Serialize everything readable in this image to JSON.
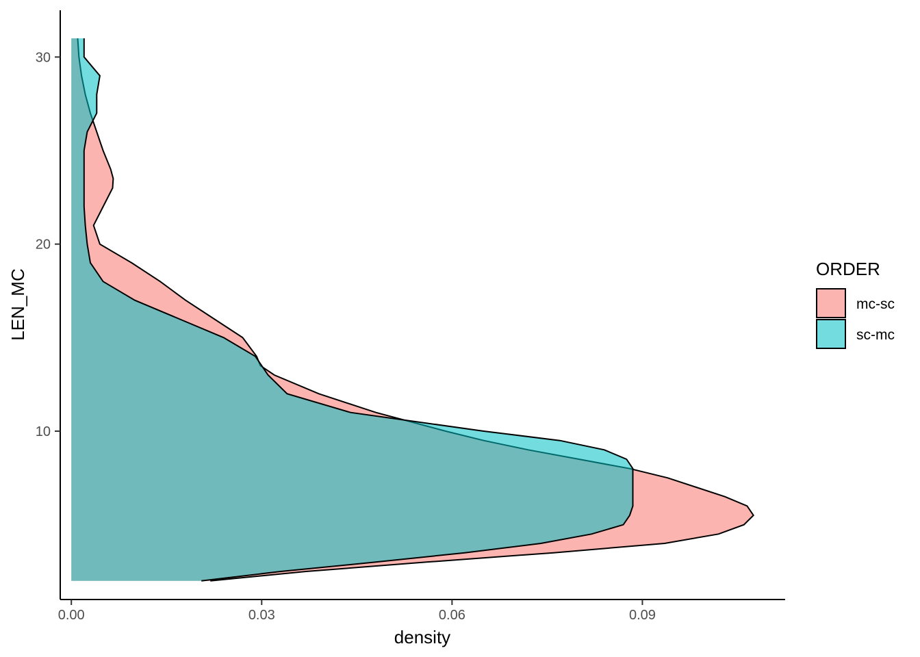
{
  "chart_data": {
    "type": "area",
    "orientation": "horizontal-density",
    "xlabel": "density",
    "ylabel": "LEN_MC",
    "xlim": [
      -0.00175,
      0.1125
    ],
    "ylim": [
      1.0,
      32.5
    ],
    "x_ticks": [
      0.0,
      0.03,
      0.06,
      0.09
    ],
    "x_tick_labels": [
      "0.00",
      "0.03",
      "0.06",
      "0.09"
    ],
    "y_ticks": [
      10,
      20,
      30
    ],
    "y_tick_labels": [
      "10",
      "20",
      "30"
    ],
    "grid": false,
    "legend": {
      "title": "ORDER",
      "position": "right",
      "entries": [
        {
          "label": "mc-sc",
          "color": "#F8766D"
        },
        {
          "label": "sc-mc",
          "color": "#00BFC4"
        }
      ]
    },
    "fill_alpha": 0.55,
    "series": [
      {
        "name": "mc-sc",
        "color": "#F8766D",
        "y": [
          2.0,
          2.5,
          3.0,
          3.5,
          4.0,
          4.5,
          5.0,
          5.5,
          6.0,
          6.5,
          7.0,
          7.5,
          8.0,
          8.5,
          9.0,
          9.5,
          10.0,
          11.0,
          12.0,
          13.0,
          13.5,
          14.0,
          15.0,
          16.0,
          17.0,
          18.0,
          19.0,
          20.0,
          21.0,
          22.0,
          23.0,
          23.5,
          24.0,
          25.0,
          26.0,
          27.0,
          28.0,
          29.0,
          30.0,
          31.0
        ],
        "density": [
          0.0219,
          0.037,
          0.056,
          0.076,
          0.0935,
          0.102,
          0.106,
          0.1075,
          0.1065,
          0.103,
          0.0985,
          0.094,
          0.088,
          0.08,
          0.072,
          0.065,
          0.059,
          0.048,
          0.039,
          0.032,
          0.0298,
          0.0292,
          0.027,
          0.0225,
          0.018,
          0.014,
          0.0095,
          0.0045,
          0.0035,
          0.005,
          0.0065,
          0.0066,
          0.0062,
          0.005,
          0.004,
          0.003,
          0.0022,
          0.0016,
          0.0012,
          0.001
        ]
      },
      {
        "name": "sc-mc",
        "color": "#00BFC4",
        "y": [
          2.0,
          2.5,
          3.0,
          3.5,
          4.0,
          4.5,
          5.0,
          5.5,
          6.0,
          6.5,
          7.0,
          7.5,
          8.0,
          8.5,
          9.0,
          9.5,
          10.0,
          11.0,
          12.0,
          13.0,
          13.5,
          14.0,
          15.0,
          16.0,
          17.0,
          18.0,
          19.0,
          20.0,
          21.0,
          22.0,
          23.0,
          24.0,
          25.0,
          26.0,
          27.0,
          28.0,
          29.0,
          30.0,
          31.0
        ],
        "density": [
          0.0205,
          0.033,
          0.048,
          0.062,
          0.074,
          0.082,
          0.087,
          0.088,
          0.0885,
          0.0885,
          0.0885,
          0.0885,
          0.0885,
          0.0875,
          0.084,
          0.077,
          0.065,
          0.044,
          0.034,
          0.031,
          0.03,
          0.029,
          0.024,
          0.017,
          0.01,
          0.005,
          0.003,
          0.0025,
          0.0022,
          0.002,
          0.002,
          0.002,
          0.002,
          0.0025,
          0.004,
          0.004,
          0.0045,
          0.002,
          0.002
        ]
      }
    ]
  }
}
